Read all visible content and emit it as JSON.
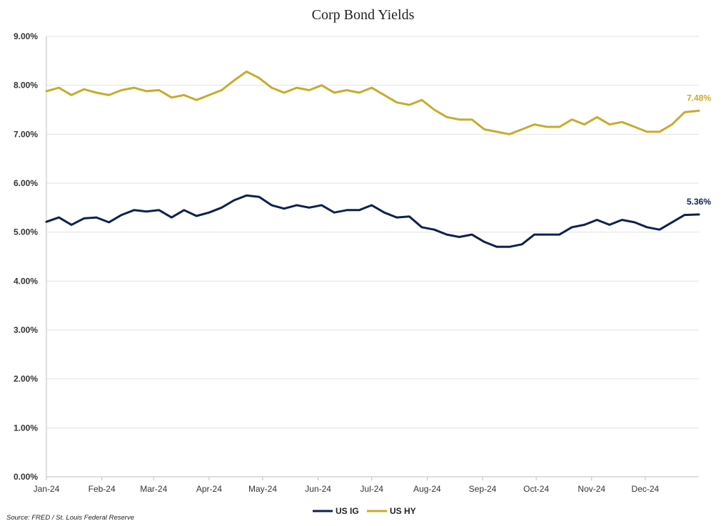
{
  "chart_data": {
    "type": "line",
    "title": "Corp Bond Yields",
    "source": "Source: FRED / St. Louis Federal Reserve",
    "xlabel": "",
    "ylabel": "",
    "x_tick_labels": [
      "Jan-24",
      "Feb-24",
      "Mar-24",
      "Apr-24",
      "May-24",
      "Jun-24",
      "Jul-24",
      "Aug-24",
      "Sep-24",
      "Oct-24",
      "Nov-24",
      "Dec-24"
    ],
    "y_tick_labels": [
      "0.00%",
      "1.00%",
      "2.00%",
      "3.00%",
      "4.00%",
      "5.00%",
      "6.00%",
      "7.00%",
      "8.00%",
      "9.00%"
    ],
    "ylim": [
      0,
      9
    ],
    "grid": true,
    "legend": "bottom-center",
    "x": [
      "2024-01-01",
      "2024-01-08",
      "2024-01-15",
      "2024-01-22",
      "2024-01-29",
      "2024-02-05",
      "2024-02-12",
      "2024-02-19",
      "2024-02-26",
      "2024-03-04",
      "2024-03-11",
      "2024-03-18",
      "2024-03-25",
      "2024-04-01",
      "2024-04-08",
      "2024-04-15",
      "2024-04-22",
      "2024-04-29",
      "2024-05-06",
      "2024-05-13",
      "2024-05-20",
      "2024-05-27",
      "2024-06-03",
      "2024-06-10",
      "2024-06-17",
      "2024-06-24",
      "2024-07-01",
      "2024-07-08",
      "2024-07-15",
      "2024-07-22",
      "2024-07-29",
      "2024-08-05",
      "2024-08-12",
      "2024-08-19",
      "2024-08-26",
      "2024-09-02",
      "2024-09-09",
      "2024-09-16",
      "2024-09-23",
      "2024-09-30",
      "2024-10-07",
      "2024-10-14",
      "2024-10-21",
      "2024-10-28",
      "2024-11-04",
      "2024-11-11",
      "2024-11-18",
      "2024-11-25",
      "2024-12-02",
      "2024-12-09",
      "2024-12-16",
      "2024-12-23",
      "2024-12-31"
    ],
    "series": [
      {
        "name": "US IG",
        "color": "#0d2150",
        "end_label": "5.36%",
        "values": [
          5.21,
          5.3,
          5.15,
          5.28,
          5.3,
          5.2,
          5.35,
          5.45,
          5.42,
          5.45,
          5.3,
          5.45,
          5.33,
          5.4,
          5.5,
          5.65,
          5.75,
          5.72,
          5.55,
          5.48,
          5.55,
          5.5,
          5.55,
          5.4,
          5.45,
          5.45,
          5.55,
          5.4,
          5.3,
          5.32,
          5.1,
          5.05,
          4.95,
          4.9,
          4.95,
          4.8,
          4.7,
          4.7,
          4.75,
          4.95,
          4.95,
          4.95,
          5.1,
          5.15,
          5.25,
          5.15,
          5.25,
          5.2,
          5.1,
          5.05,
          5.2,
          5.35,
          5.36
        ]
      },
      {
        "name": "US HY",
        "color": "#c9ab2c",
        "end_label": "7.48%",
        "values": [
          7.88,
          7.95,
          7.8,
          7.92,
          7.85,
          7.8,
          7.9,
          7.95,
          7.88,
          7.9,
          7.75,
          7.8,
          7.7,
          7.8,
          7.9,
          8.1,
          8.28,
          8.15,
          7.95,
          7.85,
          7.95,
          7.9,
          8.0,
          7.85,
          7.9,
          7.85,
          7.95,
          7.8,
          7.65,
          7.6,
          7.7,
          7.5,
          7.35,
          7.3,
          7.3,
          7.1,
          7.05,
          7.0,
          7.1,
          7.2,
          7.15,
          7.15,
          7.3,
          7.2,
          7.35,
          7.2,
          7.25,
          7.15,
          7.05,
          7.05,
          7.2,
          7.45,
          7.48
        ]
      }
    ]
  }
}
